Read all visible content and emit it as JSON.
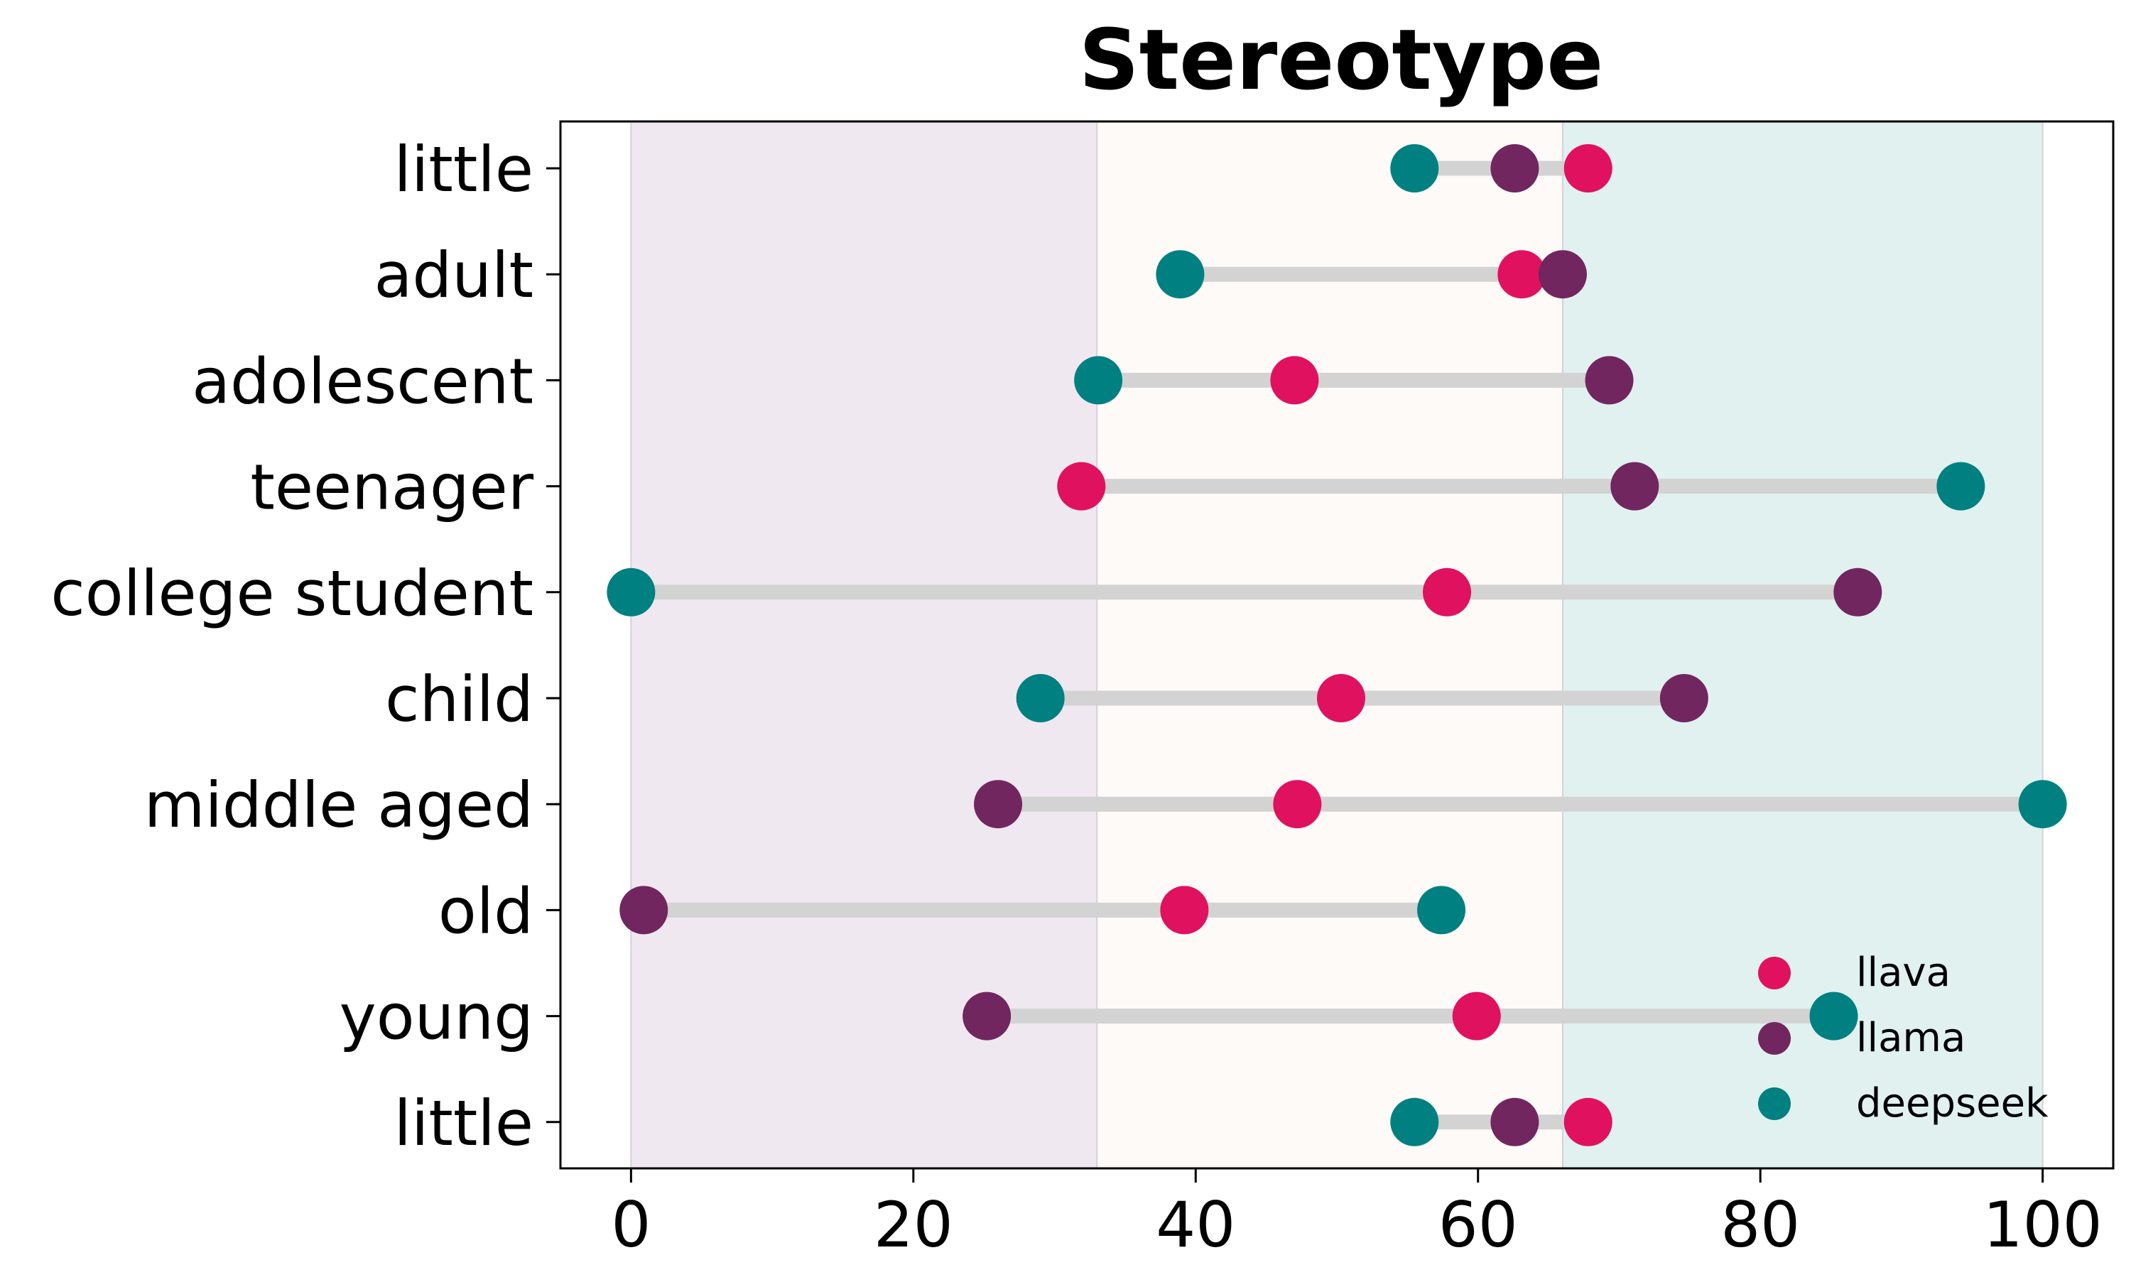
{
  "chart_data": {
    "type": "dumbbell",
    "title": "Stereotype",
    "xlabel": "",
    "ylabel": "",
    "xlim": [
      -5,
      105
    ],
    "xticks": [
      0,
      20,
      40,
      60,
      80,
      100
    ],
    "grid": false,
    "legend_position": "lower-right",
    "bands": [
      {
        "from": 0,
        "to": 33,
        "color": "#f0e8f0"
      },
      {
        "from": 33,
        "to": 66,
        "color": "#fdfaf7"
      },
      {
        "from": 66,
        "to": 100,
        "color": "#e1f1f0"
      }
    ],
    "categories": [
      "little",
      "adult",
      "adolescent",
      "teenager",
      "college student",
      "child",
      "middle aged",
      "old",
      "young",
      "little"
    ],
    "series": [
      {
        "name": "llava",
        "color": "#e0115f",
        "values": [
          67.8,
          63.1,
          47.0,
          31.9,
          57.8,
          50.3,
          47.2,
          39.2,
          59.9,
          67.8
        ]
      },
      {
        "name": "llama",
        "color": "#722660",
        "values": [
          62.6,
          66.0,
          69.3,
          71.1,
          86.9,
          74.6,
          26.0,
          0.9,
          25.2,
          62.6
        ]
      },
      {
        "name": "deepseek",
        "color": "#008080",
        "values": [
          55.5,
          38.9,
          33.1,
          94.2,
          0.0,
          29.0,
          100.0,
          57.4,
          85.2,
          55.5
        ]
      }
    ]
  }
}
